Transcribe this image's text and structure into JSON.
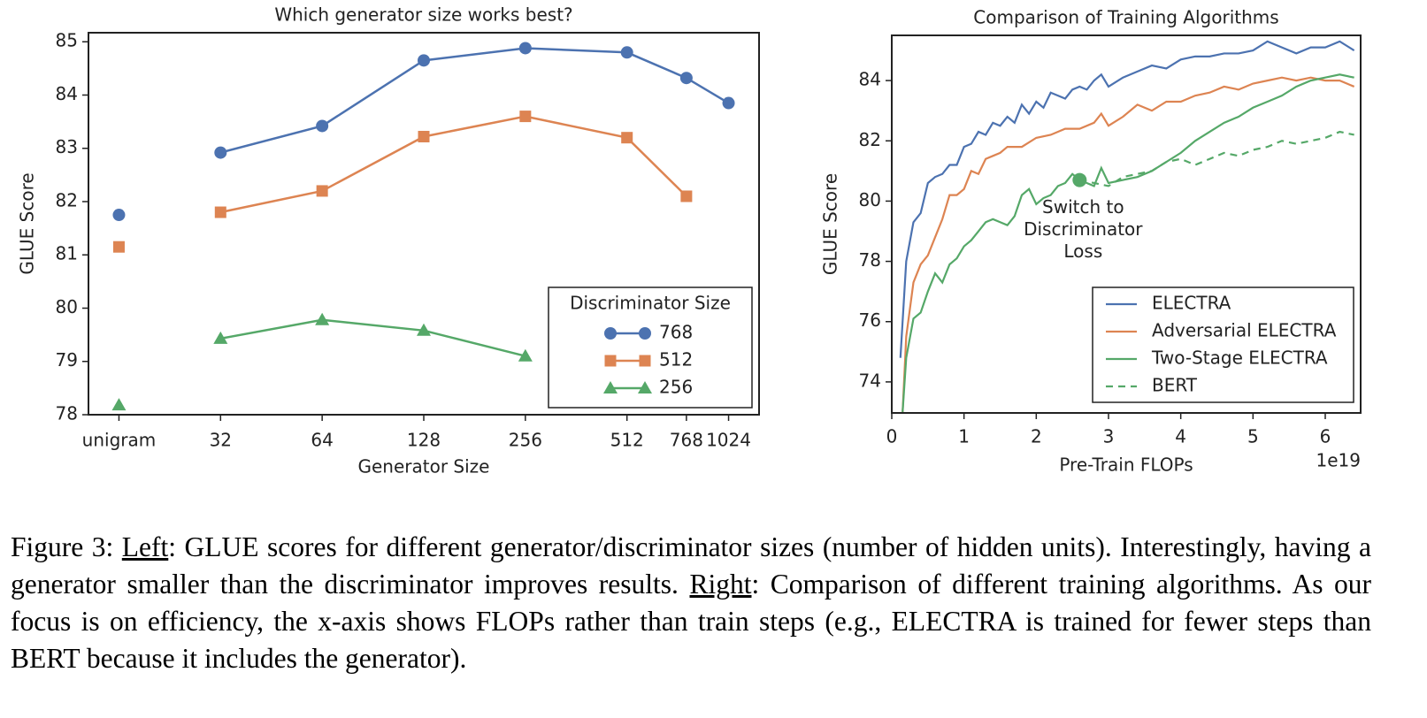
{
  "chart_data": [
    {
      "type": "line",
      "title": "Which generator size works best?",
      "xlabel": "Generator Size",
      "ylabel": "GLUE Score",
      "categories": [
        "unigram",
        "32",
        "64",
        "128",
        "256",
        "512",
        "768",
        "1024"
      ],
      "ylim": [
        78,
        85.17
      ],
      "yticks": [
        78,
        79,
        80,
        81,
        82,
        83,
        84,
        85
      ],
      "legend_title": "Discriminator Size",
      "legend": "lower right",
      "series": [
        {
          "name": "768",
          "color": "#4c72b0",
          "marker": "circle",
          "values": [
            81.75,
            82.92,
            83.42,
            84.65,
            84.88,
            84.8,
            84.32,
            83.85
          ]
        },
        {
          "name": "512",
          "color": "#dd8452",
          "marker": "square",
          "values": [
            81.15,
            81.8,
            82.2,
            83.22,
            83.6,
            83.2,
            82.1,
            null
          ]
        },
        {
          "name": "256",
          "color": "#55a868",
          "marker": "triangle",
          "values": [
            78.18,
            79.43,
            79.78,
            79.58,
            79.1,
            null,
            null,
            null
          ]
        }
      ]
    },
    {
      "type": "line",
      "title": "Comparison of Training Algorithms",
      "xlabel": "Pre-Train FLOPs",
      "ylabel": "GLUE Score",
      "x_offset_label": "1e19",
      "xlim": [
        0,
        6.49
      ],
      "xticks": [
        0,
        1,
        2,
        3,
        4,
        5,
        6
      ],
      "ylim": [
        72.97,
        85.5
      ],
      "yticks": [
        74,
        76,
        78,
        80,
        82,
        84
      ],
      "legend": "lower right",
      "annotation": {
        "text": [
          "Switch to",
          "Discriminator",
          "Loss"
        ],
        "x": 2.6,
        "y": 80.7,
        "color": "#55a868"
      },
      "series": [
        {
          "name": "ELECTRA",
          "color": "#4c72b0",
          "dash": false,
          "x": [
            0.12,
            0.2,
            0.3,
            0.4,
            0.5,
            0.6,
            0.7,
            0.8,
            0.9,
            1.0,
            1.1,
            1.2,
            1.3,
            1.4,
            1.5,
            1.6,
            1.7,
            1.8,
            1.9,
            2.0,
            2.1,
            2.2,
            2.3,
            2.4,
            2.5,
            2.6,
            2.7,
            2.8,
            2.9,
            3.0,
            3.2,
            3.4,
            3.6,
            3.8,
            4.0,
            4.2,
            4.4,
            4.6,
            4.8,
            5.0,
            5.2,
            5.4,
            5.6,
            5.8,
            6.0,
            6.2,
            6.4
          ],
          "values": [
            74.8,
            78,
            79.3,
            79.6,
            80.6,
            80.8,
            80.9,
            81.2,
            81.2,
            81.8,
            81.9,
            82.3,
            82.2,
            82.6,
            82.5,
            82.8,
            82.6,
            83.2,
            82.9,
            83.3,
            83.1,
            83.6,
            83.5,
            83.4,
            83.7,
            83.8,
            83.7,
            84.0,
            84.2,
            83.8,
            84.1,
            84.3,
            84.5,
            84.4,
            84.7,
            84.8,
            84.8,
            84.9,
            84.9,
            85.0,
            85.3,
            85.1,
            84.9,
            85.1,
            85.1,
            85.3,
            85.0
          ]
        },
        {
          "name": "Adversarial ELECTRA",
          "color": "#dd8452",
          "dash": false,
          "x": [
            0.15,
            0.2,
            0.3,
            0.4,
            0.5,
            0.6,
            0.7,
            0.8,
            0.9,
            1.0,
            1.1,
            1.2,
            1.3,
            1.4,
            1.5,
            1.6,
            1.8,
            2.0,
            2.2,
            2.4,
            2.6,
            2.8,
            2.9,
            3.0,
            3.2,
            3.4,
            3.6,
            3.8,
            4.0,
            4.2,
            4.4,
            4.6,
            4.8,
            5.0,
            5.2,
            5.4,
            5.6,
            5.8,
            6.0,
            6.2,
            6.4
          ],
          "values": [
            73.0,
            75.5,
            77.3,
            77.9,
            78.2,
            78.8,
            79.4,
            80.2,
            80.2,
            80.4,
            81.0,
            80.9,
            81.4,
            81.5,
            81.6,
            81.8,
            81.8,
            82.1,
            82.2,
            82.4,
            82.4,
            82.6,
            82.9,
            82.5,
            82.8,
            83.2,
            83.0,
            83.3,
            83.3,
            83.5,
            83.6,
            83.8,
            83.7,
            83.9,
            84.0,
            84.1,
            84.0,
            84.1,
            84.0,
            84.0,
            83.8
          ]
        },
        {
          "name": "Two-Stage ELECTRA",
          "color": "#55a868",
          "dash": false,
          "x": [
            0.15,
            0.2,
            0.3,
            0.4,
            0.5,
            0.6,
            0.7,
            0.8,
            0.9,
            1.0,
            1.1,
            1.2,
            1.3,
            1.4,
            1.5,
            1.6,
            1.7,
            1.8,
            1.9,
            2.0,
            2.1,
            2.2,
            2.3,
            2.4,
            2.5,
            2.6,
            2.7,
            2.8,
            2.9,
            3.0,
            3.2,
            3.4,
            3.6,
            3.8,
            4.0,
            4.2,
            4.4,
            4.6,
            4.8,
            5.0,
            5.2,
            5.4,
            5.6,
            5.8,
            6.0,
            6.2,
            6.4
          ],
          "values": [
            73.0,
            74.8,
            76.1,
            76.3,
            77.0,
            77.6,
            77.3,
            77.9,
            78.1,
            78.5,
            78.7,
            79.0,
            79.3,
            79.4,
            79.3,
            79.2,
            79.5,
            80.2,
            80.4,
            79.9,
            80.1,
            80.2,
            80.5,
            80.6,
            80.9,
            80.7,
            80.6,
            80.5,
            81.1,
            80.6,
            80.7,
            80.8,
            81.0,
            81.3,
            81.6,
            82.0,
            82.3,
            82.6,
            82.8,
            83.1,
            83.3,
            83.5,
            83.8,
            84.0,
            84.1,
            84.2,
            84.1
          ]
        },
        {
          "name": "BERT",
          "color": "#55a868",
          "dash": true,
          "x": [
            2.6,
            2.8,
            3.0,
            3.2,
            3.4,
            3.6,
            3.8,
            4.0,
            4.2,
            4.4,
            4.6,
            4.8,
            5.0,
            5.2,
            5.4,
            5.6,
            5.8,
            6.0,
            6.2,
            6.4
          ],
          "values": [
            80.7,
            80.6,
            80.5,
            80.8,
            80.9,
            81.0,
            81.3,
            81.4,
            81.2,
            81.4,
            81.6,
            81.5,
            81.7,
            81.8,
            82.0,
            81.9,
            82.0,
            82.1,
            82.3,
            82.2
          ]
        }
      ]
    }
  ],
  "caption": {
    "prefix": "Figure 3: ",
    "left_label": "Left",
    "left_text": ": GLUE scores for different generator/discriminator sizes (number of hidden units). Interestingly, having a generator smaller than the discriminator improves results. ",
    "right_label": "Right",
    "right_text": ": Comparison of different training algorithms.  As our focus is on efficiency, the x-axis shows FLOPs rather than train steps (e.g., ELECTRA is trained for fewer steps than BERT because it includes the generator)."
  }
}
